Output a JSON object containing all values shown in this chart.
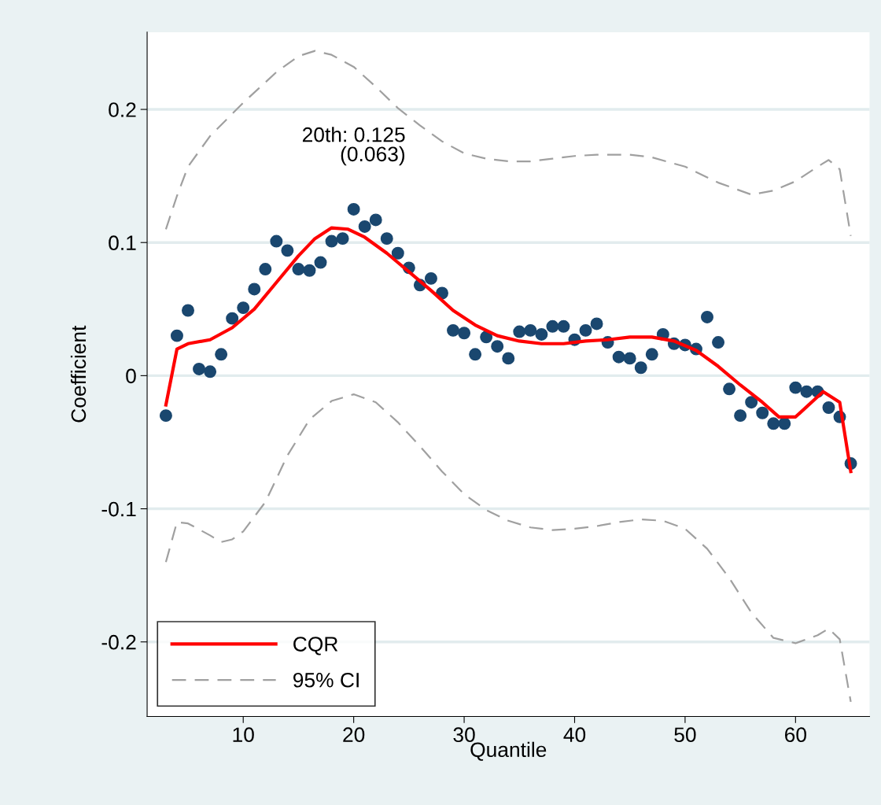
{
  "chart_data": {
    "type": "line",
    "xlabel": "Quantile",
    "ylabel": "Coefficient",
    "xlim": [
      1.3,
      66.7
    ],
    "ylim": [
      -0.256,
      0.258
    ],
    "xticks": [
      10,
      20,
      30,
      40,
      50,
      60
    ],
    "yticks": [
      {
        "value": -0.2,
        "label": "-0.2"
      },
      {
        "value": -0.1,
        "label": "-0.1"
      },
      0,
      0.1,
      0.2
    ],
    "grid": "y",
    "legend": "bottom left",
    "annotations": [
      {
        "text": "20th: 0.125\n(0.063)",
        "x": 20,
        "y": 0.125
      }
    ],
    "series": [
      {
        "type": "scatter",
        "color": "#1a476f",
        "marker": "circle",
        "x": [
          3,
          4,
          5,
          6,
          7,
          8,
          9,
          10,
          11,
          12,
          13,
          14,
          15,
          16,
          17,
          18,
          19,
          20,
          21,
          22,
          23,
          24,
          25,
          26,
          27,
          28,
          29,
          30,
          31,
          32,
          33,
          34,
          35,
          36,
          37,
          38,
          39,
          40,
          41,
          42,
          43,
          44,
          45,
          46,
          47,
          48,
          49,
          50,
          51,
          52,
          53,
          54,
          55,
          56,
          57,
          58,
          59,
          60,
          61,
          62,
          63,
          64,
          65
        ],
        "values": [
          -0.03,
          0.03,
          0.049,
          0.005,
          0.003,
          0.016,
          0.043,
          0.051,
          0.065,
          0.08,
          0.101,
          0.094,
          0.08,
          0.079,
          0.085,
          0.101,
          0.103,
          0.125,
          0.112,
          0.117,
          0.103,
          0.092,
          0.081,
          0.068,
          0.073,
          0.062,
          0.034,
          0.032,
          0.016,
          0.029,
          0.022,
          0.013,
          0.033,
          0.034,
          0.031,
          0.037,
          0.037,
          0.027,
          0.034,
          0.039,
          0.025,
          0.014,
          0.013,
          0.006,
          0.016,
          0.031,
          0.024,
          0.023,
          0.02,
          0.044,
          0.025,
          -0.01,
          -0.03,
          -0.02,
          -0.028,
          -0.036,
          -0.036,
          -0.009,
          -0.012,
          -0.012,
          -0.024,
          -0.031,
          -0.066
        ]
      },
      {
        "name": "CQR",
        "color": "#ff0000",
        "line_style": "solid",
        "x": [
          3,
          4,
          5,
          7,
          9,
          11,
          13,
          15,
          16.5,
          18,
          19.5,
          21,
          23,
          25,
          27,
          29,
          31,
          33,
          35,
          37,
          39,
          41,
          43,
          45,
          47,
          49,
          51,
          53,
          55,
          57,
          58.5,
          60,
          62.5,
          64,
          65
        ],
        "values": [
          -0.022,
          0.02,
          0.024,
          0.027,
          0.036,
          0.05,
          0.07,
          0.09,
          0.103,
          0.111,
          0.11,
          0.104,
          0.092,
          0.078,
          0.064,
          0.049,
          0.038,
          0.03,
          0.026,
          0.024,
          0.024,
          0.026,
          0.027,
          0.029,
          0.029,
          0.026,
          0.019,
          0.007,
          -0.007,
          -0.02,
          -0.031,
          -0.031,
          -0.012,
          -0.02,
          -0.072
        ]
      },
      {
        "type": "line",
        "name": "95% CI",
        "color": "#a0a0a0",
        "line_style": "dashed",
        "x": [
          3,
          4,
          5,
          7,
          10,
          13,
          15,
          16.5,
          18,
          20,
          22,
          24,
          26,
          28,
          30,
          32,
          34,
          36,
          38,
          40,
          42,
          45,
          47,
          50,
          53,
          56,
          58,
          60,
          62,
          63,
          64,
          65
        ],
        "values": [
          0.11,
          0.135,
          0.157,
          0.18,
          0.205,
          0.228,
          0.24,
          0.244,
          0.241,
          0.232,
          0.217,
          0.201,
          0.188,
          0.176,
          0.167,
          0.163,
          0.161,
          0.161,
          0.163,
          0.165,
          0.166,
          0.166,
          0.164,
          0.157,
          0.145,
          0.136,
          0.139,
          0.146,
          0.157,
          0.162,
          0.155,
          0.105
        ]
      },
      {
        "type": "line",
        "color": "#a0a0a0",
        "line_style": "dashed",
        "x": [
          3,
          4,
          5,
          7,
          8,
          9,
          10,
          12,
          14,
          16,
          18,
          20,
          22,
          24,
          26,
          28,
          30,
          32,
          34,
          36,
          38,
          40,
          42,
          44,
          46,
          48,
          50,
          52,
          54,
          56,
          58,
          60,
          62,
          63,
          64,
          65
        ],
        "values": [
          -0.14,
          -0.11,
          -0.111,
          -0.12,
          -0.125,
          -0.123,
          -0.117,
          -0.095,
          -0.06,
          -0.033,
          -0.019,
          -0.014,
          -0.02,
          -0.035,
          -0.053,
          -0.072,
          -0.089,
          -0.101,
          -0.109,
          -0.114,
          -0.116,
          -0.115,
          -0.113,
          -0.11,
          -0.108,
          -0.109,
          -0.115,
          -0.13,
          -0.152,
          -0.178,
          -0.197,
          -0.201,
          -0.195,
          -0.19,
          -0.198,
          -0.245
        ]
      }
    ]
  }
}
